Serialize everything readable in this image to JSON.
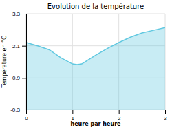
{
  "chart_data": {
    "type": "area",
    "title": "Evolution de la température",
    "xlabel": "heure par heure",
    "ylabel": "Température en °C",
    "x": [
      0,
      0.25,
      0.5,
      0.75,
      1.0,
      1.1,
      1.2,
      1.5,
      1.75,
      2.0,
      2.25,
      2.5,
      2.75,
      3.0
    ],
    "values": [
      2.22,
      2.1,
      1.95,
      1.65,
      1.42,
      1.4,
      1.42,
      1.75,
      2.0,
      2.22,
      2.42,
      2.58,
      2.68,
      2.78
    ],
    "color": "#60c8e0",
    "xlim": [
      0,
      3
    ],
    "ylim": [
      -0.3,
      3.3
    ],
    "xticks": [
      0,
      1,
      2,
      3
    ],
    "yticks": [
      -0.3,
      0.9,
      2.1,
      3.3
    ],
    "grid": true
  }
}
